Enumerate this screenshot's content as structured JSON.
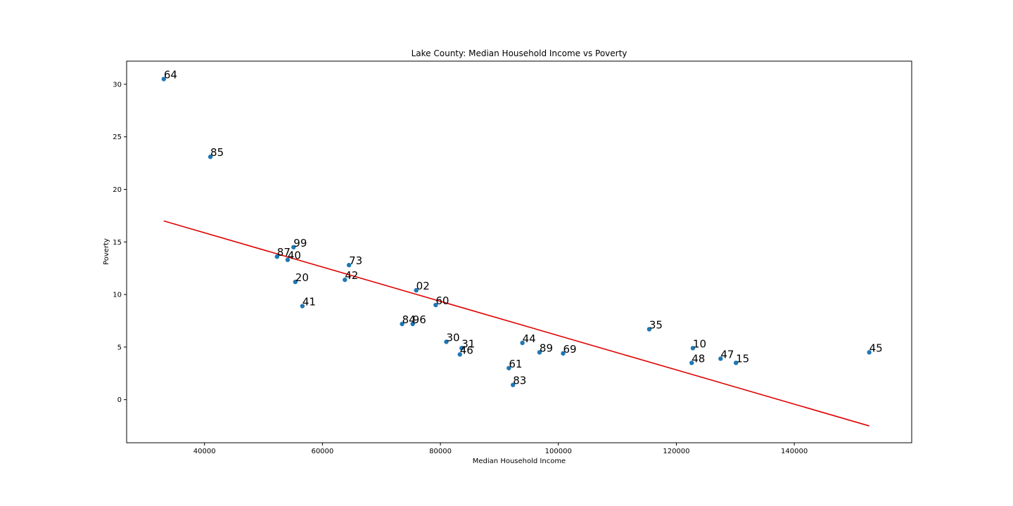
{
  "chart_data": {
    "type": "scatter",
    "title": "Lake County: Median Household Income vs Poverty",
    "xlabel": "Median Household Income",
    "ylabel": "Poverty",
    "xlim": [
      26800,
      159900
    ],
    "ylim": [
      -4.1,
      32.2
    ],
    "xticks": [
      40000,
      60000,
      80000,
      100000,
      120000,
      140000
    ],
    "yticks": [
      0,
      5,
      10,
      15,
      20,
      25,
      30
    ],
    "grid": false,
    "legend": "none",
    "point_color": "#1f77b4",
    "line_color": "#e00000",
    "points": [
      {
        "label": "64",
        "x": 33100,
        "y": 30.5
      },
      {
        "label": "85",
        "x": 41000,
        "y": 23.1
      },
      {
        "label": "99",
        "x": 55100,
        "y": 14.5
      },
      {
        "label": "87",
        "x": 52300,
        "y": 13.6
      },
      {
        "label": "40",
        "x": 54100,
        "y": 13.3
      },
      {
        "label": "73",
        "x": 64500,
        "y": 12.8
      },
      {
        "label": "42",
        "x": 63800,
        "y": 11.4
      },
      {
        "label": "20",
        "x": 55400,
        "y": 11.2
      },
      {
        "label": "41",
        "x": 56600,
        "y": 8.9
      },
      {
        "label": "02",
        "x": 75900,
        "y": 10.4
      },
      {
        "label": "60",
        "x": 79200,
        "y": 9.0
      },
      {
        "label": "84",
        "x": 73500,
        "y": 7.2
      },
      {
        "label": "96",
        "x": 75300,
        "y": 7.2
      },
      {
        "label": "30",
        "x": 81000,
        "y": 5.5
      },
      {
        "label": "31",
        "x": 83600,
        "y": 4.9
      },
      {
        "label": "46",
        "x": 83300,
        "y": 4.3
      },
      {
        "label": "44",
        "x": 93900,
        "y": 5.4
      },
      {
        "label": "89",
        "x": 96800,
        "y": 4.5
      },
      {
        "label": "69",
        "x": 100800,
        "y": 4.4
      },
      {
        "label": "61",
        "x": 91600,
        "y": 3.0
      },
      {
        "label": "83",
        "x": 92300,
        "y": 1.4
      },
      {
        "label": "35",
        "x": 115400,
        "y": 6.7
      },
      {
        "label": "10",
        "x": 122800,
        "y": 4.9
      },
      {
        "label": "48",
        "x": 122600,
        "y": 3.5
      },
      {
        "label": "47",
        "x": 127500,
        "y": 3.9
      },
      {
        "label": "15",
        "x": 130100,
        "y": 3.5
      },
      {
        "label": "45",
        "x": 152700,
        "y": 4.5
      }
    ],
    "regression_line": {
      "x": [
        33100,
        152700
      ],
      "y": [
        17.0,
        -2.5
      ]
    }
  }
}
